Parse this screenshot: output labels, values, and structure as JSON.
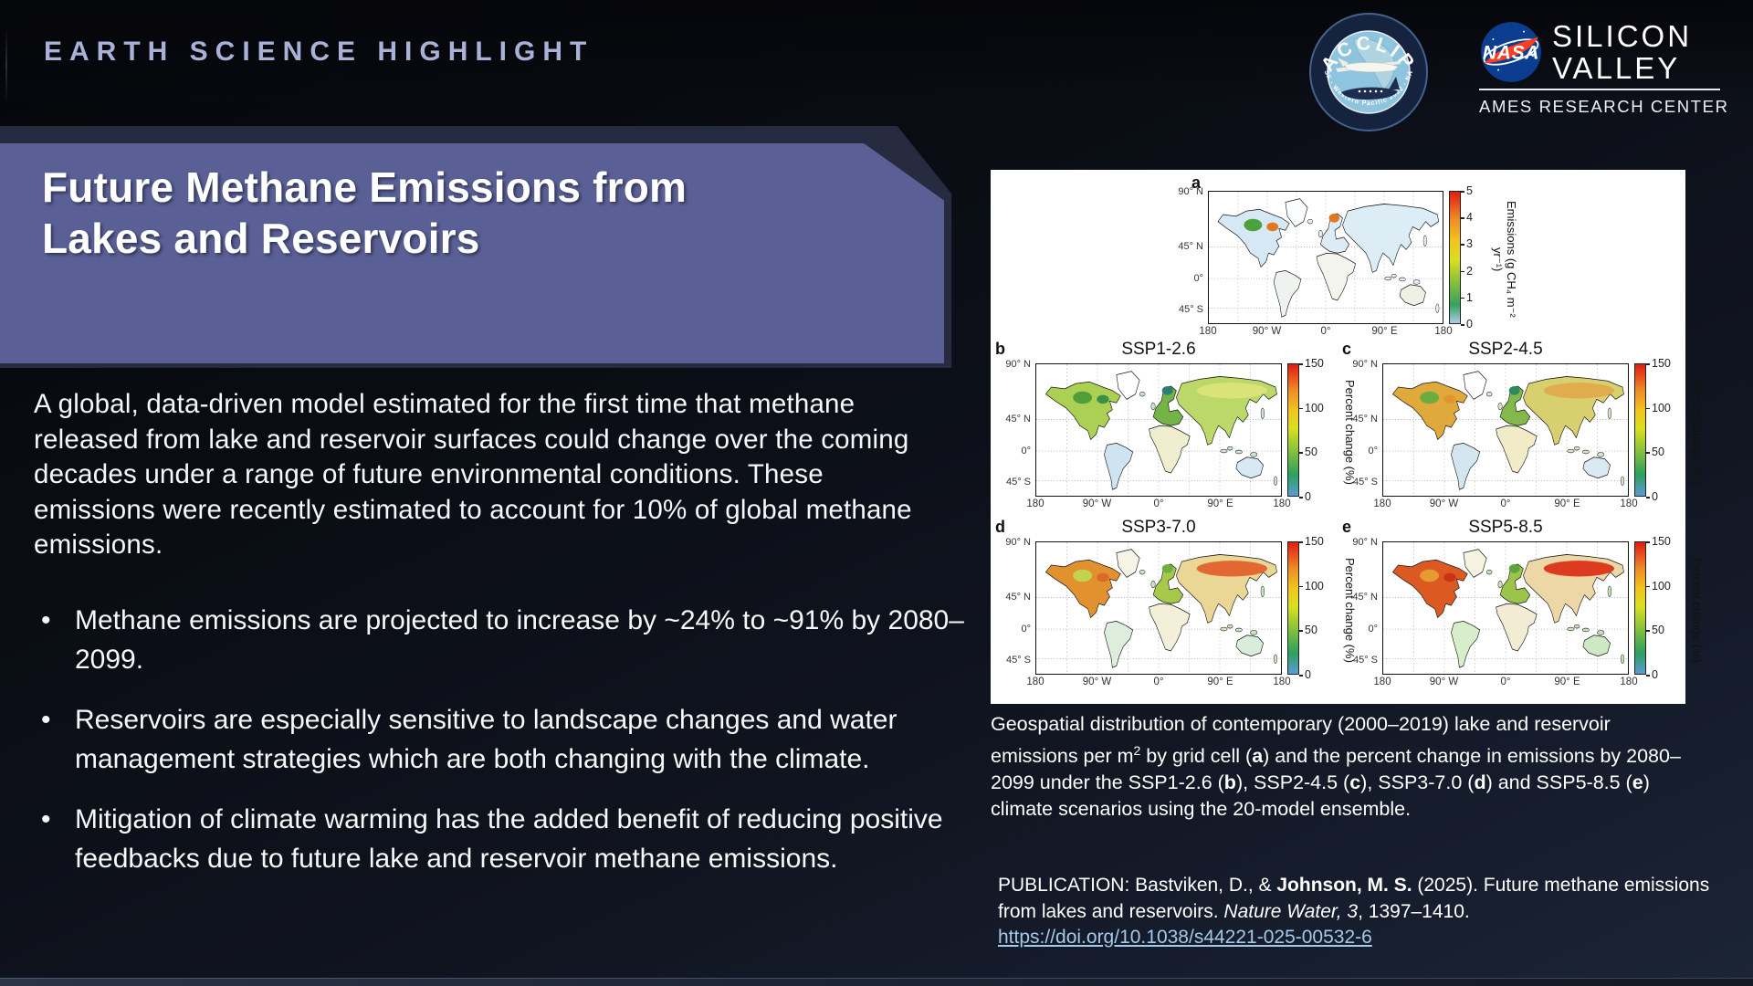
{
  "header": {
    "label": "EARTH SCIENCE HIGHLIGHT"
  },
  "logos": {
    "acclip": {
      "name": "ACCLIP",
      "ring_text": "NOAA · NSF · Western Pacific 2022 · NASA · ONR"
    },
    "nasa": {
      "wordmark": "NASA",
      "line1": "SILICON",
      "line2": "VALLEY",
      "subtitle": "AMES RESEARCH CENTER"
    }
  },
  "title": {
    "line1": "Future Methane Emissions from",
    "line2": "Lakes and Reservoirs"
  },
  "intro": "A global, data-driven model estimated for the first time that methane released from lake and reservoir surfaces could change over the coming decades under a range of future environmental conditions. These emissions were recently estimated to account for 10% of global methane emissions.",
  "bullets": [
    "Methane emissions are projected to increase by ~24% to ~91% by 2080–2099.",
    "Reservoirs are especially sensitive to landscape changes and water management strategies which are both changing with the climate.",
    "Mitigation of climate warming has the added benefit of reducing positive feedbacks due to future lake and reservoir methane emissions."
  ],
  "figure": {
    "chart_data": {
      "type": "heatmap",
      "subtype": "global-map-grid",
      "panels_order": [
        "a",
        "b",
        "c",
        "d",
        "e"
      ],
      "panel_a": {
        "quantity": "Contemporary (2000–2019) lake and reservoir CH₄ emissions",
        "colorbar_range": [
          0,
          5
        ],
        "units": "g CH₄ m⁻² yr⁻¹",
        "pattern": "mostly low (pale blue) with green/orange hotspots in Canada and Scandinavia"
      },
      "panel_b": {
        "scenario": "SSP1-2.6",
        "quantity": "Percent change in emissions by 2080–2099",
        "colorbar_range": [
          0,
          150
        ],
        "units": "%",
        "pattern": "green/yellow-green northern continents, pale blue southern continents"
      },
      "panel_c": {
        "scenario": "SSP2-4.5",
        "quantity": "Percent change in emissions by 2080–2099",
        "colorbar_range": [
          0,
          150
        ],
        "units": "%",
        "pattern": "yellow-orange North America and Siberia, green Europe"
      },
      "panel_d": {
        "scenario": "SSP3-7.0",
        "quantity": "Percent change in emissions by 2080–2099",
        "colorbar_range": [
          0,
          150
        ],
        "units": "%",
        "pattern": "orange/red high northern latitudes"
      },
      "panel_e": {
        "scenario": "SSP5-8.5",
        "quantity": "Percent change in emissions by 2080–2099",
        "colorbar_range": [
          0,
          150
        ],
        "units": "%",
        "pattern": "strong red across Canada and Siberia"
      }
    },
    "axis": {
      "y_ticks": [
        "90° N",
        "45° N",
        "0°",
        "45° S"
      ],
      "y_positions": [
        1,
        42,
        66,
        89
      ],
      "x_ticks": [
        "180",
        "90° W",
        "0°",
        "90° E",
        "180"
      ]
    },
    "panels": [
      {
        "id": "a",
        "label": "a",
        "title": "",
        "colorbar": {
          "ticks": [
            "5",
            "4",
            "3",
            "2",
            "1",
            "0"
          ],
          "label": "Emissions (g CH₄ m⁻² yr⁻¹)",
          "gradient": [
            "#aacde9 0%",
            "#36a35c 14%",
            "#8ac13c 32%",
            "#dade1e 48%",
            "#f2c41d 63%",
            "#ee8d25 79%",
            "#e8451c 92%",
            "#dd2010 100%"
          ]
        },
        "fills": {
          "north_america": "#d6e8f3",
          "greenland": "#fbfdfe",
          "south_america": "#eef3ef",
          "europe": "#dcebf5",
          "africa": "#f3f4ec",
          "asia": "#ddedf6",
          "australia": "#f0f0e5",
          "islands": "#e6eef0",
          "na_spot1": "#4ba23c",
          "na_spot2": "#e0781f",
          "eu_spot": "#e0781f",
          "as_spot": "none"
        }
      },
      {
        "id": "b",
        "label": "b",
        "title": "SSP1-2.6",
        "colorbar": {
          "ticks": [
            "150",
            "100",
            "50",
            "0"
          ],
          "label": "Percent change (%)",
          "gradient": [
            "#5b9bd5 0%",
            "#2ba05c 16%",
            "#86c13c 34%",
            "#d9e01e 51%",
            "#f2c41d 65%",
            "#ee8d25 80%",
            "#e8401c 93%",
            "#dc1f10 100%"
          ]
        },
        "fills": {
          "north_america": "#abd054",
          "greenland": "#ffffff",
          "south_america": "#cfe4f1",
          "europe": "#74b348",
          "africa": "#efefcf",
          "asia": "#bcd868",
          "australia": "#d7e9f3",
          "islands": "#cfe3d2",
          "na_spot1": "#4f9e3a",
          "na_spot2": "#3b9048",
          "eu_spot": "#2c7f70",
          "as_spot": "#dce47a"
        }
      },
      {
        "id": "c",
        "label": "c",
        "title": "SSP2-4.5",
        "colorbar": {
          "ticks": [
            "150",
            "100",
            "50",
            "0"
          ],
          "label": "Percent change (%)",
          "gradient": [
            "#5b9bd5 0%",
            "#2ba05c 16%",
            "#86c13c 34%",
            "#d9e01e 51%",
            "#f2c41d 65%",
            "#ee8d25 80%",
            "#e8401c 93%",
            "#dc1f10 100%"
          ]
        },
        "fills": {
          "north_america": "#dfa93c",
          "greenland": "#ffffff",
          "south_america": "#d3e6f0",
          "europe": "#82b94a",
          "africa": "#f1ebc8",
          "asia": "#d8d06e",
          "australia": "#d9eaf2",
          "islands": "#d8e5cc",
          "na_spot1": "#6aac40",
          "na_spot2": "#e2952f",
          "eu_spot": "#2f8a5f",
          "as_spot": "#e2a74a"
        }
      },
      {
        "id": "d",
        "label": "d",
        "title": "SSP3-7.0",
        "colorbar": {
          "ticks": [
            "150",
            "100",
            "50",
            "0"
          ],
          "label": "Percent change (%)",
          "gradient": [
            "#5b9bd5 0%",
            "#2ba05c 16%",
            "#86c13c 34%",
            "#d9e01e 51%",
            "#f2c41d 65%",
            "#ee8d25 80%",
            "#e8401c 93%",
            "#dc1f10 100%"
          ]
        },
        "fills": {
          "north_america": "#e2912f",
          "greenland": "#f6f4e6",
          "south_america": "#ddefdc",
          "europe": "#a6c84b",
          "africa": "#f4efd8",
          "asia": "#ead695",
          "australia": "#d8edda",
          "islands": "#cbe5c2",
          "na_spot1": "#c3d44c",
          "na_spot2": "#d96a28",
          "eu_spot": "#6fae3f",
          "as_spot": "#e25b28"
        }
      },
      {
        "id": "e",
        "label": "e",
        "title": "SSP5-8.5",
        "colorbar": {
          "ticks": [
            "150",
            "100",
            "50",
            "0"
          ],
          "label": "Percent change (%)",
          "gradient": [
            "#5b9bd5 0%",
            "#2ba05c 16%",
            "#86c13c 34%",
            "#d9e01e 51%",
            "#f2c41d 65%",
            "#ee8d25 80%",
            "#e8401c 93%",
            "#dc1f10 100%"
          ]
        },
        "fills": {
          "north_america": "#dc5a22",
          "greenland": "#f6f3e2",
          "south_america": "#d8edca",
          "europe": "#9cc44d",
          "africa": "#f2ecd4",
          "asia": "#eed7a6",
          "australia": "#cde9c4",
          "islands": "#c6e2ba",
          "na_spot1": "#e59a32",
          "na_spot2": "#c93318",
          "eu_spot": "#5ba53c",
          "as_spot": "#da2a12"
        }
      }
    ]
  },
  "caption": {
    "segments": [
      {
        "t": "Geospatial distribution of contemporary (2000–2019) lake and reservoir emissions per m"
      },
      {
        "t": "2",
        "sup": true
      },
      {
        "t": " by grid cell ("
      },
      {
        "t": "a",
        "b": true
      },
      {
        "t": ") and the percent change in emissions by 2080–2099 under the SSP1-2.6 ("
      },
      {
        "t": "b",
        "b": true
      },
      {
        "t": "), SSP2-4.5 ("
      },
      {
        "t": "c",
        "b": true
      },
      {
        "t": "), SSP3-7.0 ("
      },
      {
        "t": "d",
        "b": true
      },
      {
        "t": ") and SSP5-8.5 ("
      },
      {
        "t": "e",
        "b": true
      },
      {
        "t": ") climate scenarios using the 20-model ensemble."
      }
    ]
  },
  "publication": {
    "segments": [
      {
        "t": "PUBLICATION: Bastviken, D., & "
      },
      {
        "t": "Johnson, M. S.",
        "b": true
      },
      {
        "t": " (2025). Future methane emissions from lakes and reservoirs. "
      },
      {
        "t": "Nature Water, 3",
        "i": true
      },
      {
        "t": ", 1397–1410."
      }
    ],
    "link": "https://doi.org/10.1038/s44221-025-00532-6"
  },
  "colors": {
    "banner": "#5a6095",
    "banner_shadow": "#272b40",
    "header_text": "#a9b1d8",
    "link": "#a5c9e9",
    "nasa_blue": "#0b3d91",
    "nasa_red": "#fc3d21"
  }
}
